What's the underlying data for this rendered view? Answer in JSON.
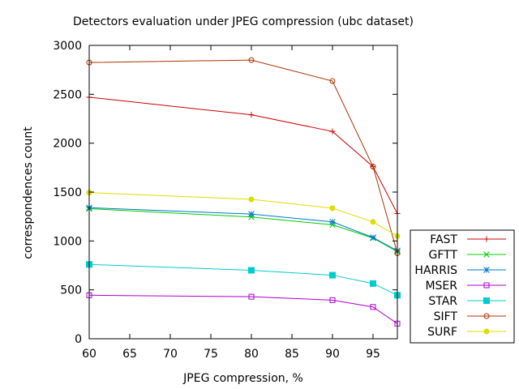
{
  "chart_data": {
    "type": "line",
    "title": "Detectors evaluation under JPEG compression (ubc dataset)",
    "xlabel": "JPEG compression, %",
    "ylabel": "correspondences count",
    "xlim": [
      60,
      98
    ],
    "ylim": [
      0,
      3000
    ],
    "xticks": [
      60,
      65,
      70,
      75,
      80,
      85,
      90,
      95
    ],
    "yticks": [
      0,
      500,
      1000,
      1500,
      2000,
      2500,
      3000
    ],
    "grid": false,
    "legend_position": "outside-bottom-right",
    "x": [
      60,
      80,
      90,
      95,
      98
    ],
    "series": [
      {
        "name": "FAST",
        "color": "#cc0000",
        "marker": "plus",
        "values": [
          2470,
          2290,
          2120,
          1760,
          1280
        ]
      },
      {
        "name": "GFTT",
        "color": "#00cc00",
        "marker": "cross",
        "values": [
          1330,
          1245,
          1165,
          1030,
          890
        ]
      },
      {
        "name": "HARRIS",
        "color": "#0077cc",
        "marker": "star",
        "values": [
          1340,
          1275,
          1195,
          1035,
          900
        ]
      },
      {
        "name": "MSER",
        "color": "#aa00cc",
        "marker": "open-square",
        "values": [
          445,
          430,
          395,
          325,
          155
        ]
      },
      {
        "name": "STAR",
        "color": "#00cccc",
        "marker": "filled-square",
        "values": [
          760,
          700,
          650,
          565,
          445
        ]
      },
      {
        "name": "SIFT",
        "color": "#aa3300",
        "marker": "open-circle",
        "values": [
          2825,
          2850,
          2635,
          1760,
          875
        ]
      },
      {
        "name": "SURF",
        "color": "#dddd00",
        "marker": "filled-circle",
        "values": [
          1495,
          1425,
          1335,
          1195,
          1050
        ]
      }
    ]
  }
}
